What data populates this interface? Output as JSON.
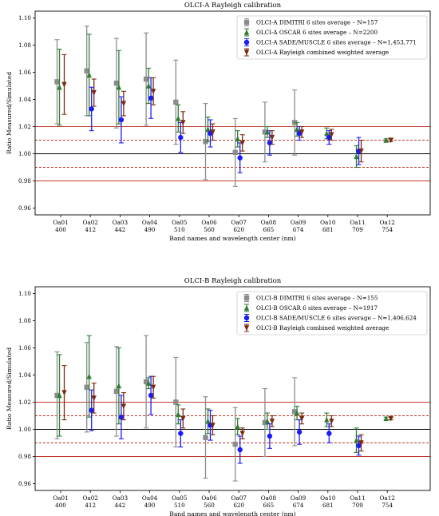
{
  "chart_data": [
    {
      "type": "errorbar",
      "title": "OLCI-A Rayleigh calibration",
      "xlabel": "Band names and wavelength center (nm)",
      "ylabel": "Ratio Measured/Simulated",
      "ylim": [
        0.955,
        1.105
      ],
      "yticks": [
        "0.96",
        "0.98",
        "1.00",
        "1.02",
        "1.04",
        "1.06",
        "1.08",
        "1.10"
      ],
      "categories": [
        "Oa01",
        "Oa02",
        "Oa03",
        "Oa04",
        "Oa05",
        "Oa06",
        "Oa07",
        "Oa08",
        "Oa09",
        "Oa10",
        "Oa11",
        "Oa12"
      ],
      "wavelengths": [
        "400",
        "412",
        "442",
        "490",
        "510",
        "560",
        "620",
        "665",
        "674",
        "681",
        "709",
        "754"
      ],
      "legend_position": "top-right",
      "reference_lines": [
        {
          "y": 1.0,
          "color": "#000000",
          "style": "solid"
        },
        {
          "y": 1.02,
          "color": "#c0392b",
          "style": "solid"
        },
        {
          "y": 0.98,
          "color": "#c0392b",
          "style": "solid"
        },
        {
          "y": 1.01,
          "color": "#c0392b",
          "style": "dashed"
        },
        {
          "y": 0.99,
          "color": "#c0392b",
          "style": "dashed"
        }
      ],
      "series": [
        {
          "name": "OLCI-A DIMITRI 6 sites average – N=157",
          "marker": "square",
          "color": "#8c8c8c",
          "values": [
            1.053,
            1.061,
            1.052,
            1.055,
            1.038,
            1.009,
            1.001,
            1.016,
            1.023,
            null,
            null,
            null
          ],
          "errors": [
            0.031,
            0.033,
            0.033,
            0.034,
            0.031,
            0.028,
            0.025,
            0.022,
            0.024,
            null,
            null,
            null
          ]
        },
        {
          "name": "OLCI-A OSCAR 6 sites average – N=2200",
          "marker": "triangle",
          "color": "#2e7d32",
          "values": [
            1.049,
            1.058,
            1.049,
            1.05,
            1.026,
            1.018,
            1.011,
            1.016,
            1.018,
            1.015,
            0.998,
            1.01
          ],
          "errors": [
            0.028,
            0.03,
            0.027,
            0.013,
            0.01,
            0.009,
            0.006,
            0.004,
            0.005,
            0.004,
            0.008,
            0.001
          ]
        },
        {
          "name": "OLCI-A SADE/MUSCLE 6 sites average – N=1,453,771",
          "marker": "circle",
          "color": "#1a1aff",
          "values": [
            null,
            1.033,
            1.025,
            1.041,
            1.012,
            1.015,
            0.997,
            1.008,
            1.015,
            1.012,
            1.002,
            null
          ],
          "errors": [
            null,
            0.016,
            0.017,
            0.015,
            0.011,
            0.01,
            0.011,
            0.009,
            0.005,
            0.005,
            0.01,
            null
          ]
        },
        {
          "name": "OLCI-A Rayleigh combined weighted average",
          "marker": "triangle-down",
          "color": "#7b2a10",
          "values": [
            1.051,
            1.045,
            1.037,
            1.046,
            1.023,
            1.016,
            1.008,
            1.012,
            1.016,
            1.014,
            1.002,
            1.01
          ],
          "errors": [
            0.022,
            0.01,
            0.009,
            0.01,
            0.008,
            0.006,
            0.006,
            0.005,
            0.004,
            0.004,
            0.008,
            0.001
          ]
        }
      ]
    },
    {
      "type": "errorbar",
      "title": "OLCI-B Rayleigh calibration",
      "xlabel": "Band names and wavelength center (nm)",
      "ylabel": "Ratio Measured/Simulated",
      "ylim": [
        0.955,
        1.105
      ],
      "yticks": [
        "0.96",
        "0.98",
        "1.00",
        "1.02",
        "1.04",
        "1.06",
        "1.08",
        "1.10"
      ],
      "categories": [
        "Oa01",
        "Oa02",
        "Oa03",
        "Oa04",
        "Oa05",
        "Oa06",
        "Oa07",
        "Oa08",
        "Oa09",
        "Oa10",
        "Oa11",
        "Oa12"
      ],
      "wavelengths": [
        "400",
        "412",
        "442",
        "490",
        "510",
        "560",
        "620",
        "665",
        "674",
        "681",
        "709",
        "754"
      ],
      "legend_position": "top-right",
      "reference_lines": [
        {
          "y": 1.0,
          "color": "#000000",
          "style": "solid"
        },
        {
          "y": 1.02,
          "color": "#c0392b",
          "style": "solid"
        },
        {
          "y": 0.98,
          "color": "#c0392b",
          "style": "solid"
        },
        {
          "y": 1.01,
          "color": "#c0392b",
          "style": "dashed"
        },
        {
          "y": 0.99,
          "color": "#c0392b",
          "style": "dashed"
        }
      ],
      "series": [
        {
          "name": "OLCI-B DIMITRI 6 sites average – N=155",
          "marker": "square",
          "color": "#8c8c8c",
          "values": [
            1.025,
            1.031,
            1.028,
            1.035,
            1.02,
            0.994,
            0.989,
            1.005,
            1.013,
            null,
            null,
            null
          ],
          "errors": [
            0.032,
            0.033,
            0.033,
            0.034,
            0.033,
            0.03,
            0.027,
            0.025,
            0.025,
            null,
            null,
            null
          ]
        },
        {
          "name": "OLCI-B OSCAR 6 sites average – N=1917",
          "marker": "triangle",
          "color": "#2e7d32",
          "values": [
            1.025,
            1.039,
            1.032,
            1.034,
            1.011,
            1.006,
            1.002,
            1.006,
            1.012,
            1.007,
            0.992,
            1.008
          ],
          "errors": [
            0.03,
            0.03,
            0.028,
            0.004,
            0.007,
            0.009,
            0.006,
            0.006,
            0.005,
            0.005,
            0.009,
            0.001
          ]
        },
        {
          "name": "OLCI-B SADE/MUSCLE 6 sites average – N=1,406,624",
          "marker": "circle",
          "color": "#1a1aff",
          "values": [
            null,
            1.014,
            1.009,
            1.025,
            0.997,
            1.003,
            0.985,
            0.995,
            0.998,
            0.997,
            0.988,
            null
          ],
          "errors": [
            null,
            0.015,
            0.016,
            0.014,
            0.01,
            0.011,
            0.01,
            0.009,
            0.009,
            0.007,
            0.007,
            null
          ]
        },
        {
          "name": "OLCI-B Rayleigh combined weighted average",
          "marker": "triangle-down",
          "color": "#7b2a10",
          "values": [
            1.027,
            1.023,
            1.017,
            1.031,
            1.008,
            1.003,
            0.997,
            1.006,
            1.008,
            1.006,
            0.99,
            1.008
          ],
          "errors": [
            0.02,
            0.011,
            0.01,
            0.008,
            0.007,
            0.007,
            0.004,
            0.004,
            0.004,
            0.004,
            0.006,
            0.001
          ]
        }
      ]
    }
  ]
}
